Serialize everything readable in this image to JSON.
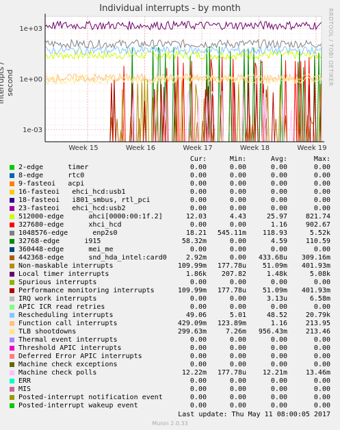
{
  "chart_data": {
    "type": "line",
    "title": "Individual interrupts - by month",
    "ylabel": "interrupts / second",
    "yscale": "log",
    "ylim": [
      0.0002,
      5000
    ],
    "yticks": [
      {
        "value": 1000,
        "label": "1e+03"
      },
      {
        "value": 1,
        "label": "1e+00"
      },
      {
        "value": 0.001,
        "label": "1e-03"
      }
    ],
    "xticks": [
      "Week 15",
      "Week 16",
      "Week 17",
      "Week 18",
      "Week 19"
    ],
    "side_text": "RRDTOOL / TOBI OETIKER",
    "columns": [
      "Cur:",
      "Min:",
      "Avg:",
      "Max:"
    ],
    "series": [
      {
        "name": "2-edge      timer",
        "color": "#00cc00",
        "cur": "0.00",
        "min": "0.00",
        "avg": "0.00",
        "max": "0.00"
      },
      {
        "name": "8-edge      rtc0",
        "color": "#0066b3",
        "cur": "0.00",
        "min": "0.00",
        "avg": "0.00",
        "max": "0.00"
      },
      {
        "name": "9-fasteoi   acpi",
        "color": "#ff8000",
        "cur": "0.00",
        "min": "0.00",
        "avg": "0.00",
        "max": "0.00"
      },
      {
        "name": "16-fasteoi   ehci_hcd:usb1",
        "color": "#ffcc00",
        "cur": "0.00",
        "min": "0.00",
        "avg": "0.00",
        "max": "0.00"
      },
      {
        "name": "18-fasteoi   i801_smbus, rtl_pci",
        "color": "#330099",
        "cur": "0.00",
        "min": "0.00",
        "avg": "0.00",
        "max": "0.00"
      },
      {
        "name": "23-fasteoi   ehci_hcd:usb2",
        "color": "#990099",
        "cur": "0.00",
        "min": "0.00",
        "avg": "0.00",
        "max": "0.00"
      },
      {
        "name": "512000-edge      ahci[0000:00:1f.2]",
        "color": "#ccff00",
        "cur": "12.03",
        "min": "4.43",
        "avg": "25.97",
        "max": "821.74"
      },
      {
        "name": "327680-edge      xhci_hcd",
        "color": "#ff0000",
        "cur": "0.00",
        "min": "0.00",
        "avg": "1.16",
        "max": "902.67"
      },
      {
        "name": "1048576-edge      enp2s0",
        "color": "#808080",
        "cur": "18.21",
        "min": "545.11m",
        "avg": "118.93",
        "max": "5.52k"
      },
      {
        "name": "32768-edge      i915",
        "color": "#008f00",
        "cur": "58.32m",
        "min": "0.00",
        "avg": "4.59",
        "max": "110.59"
      },
      {
        "name": "360448-edge      mei_me",
        "color": "#00487d",
        "cur": "0.00",
        "min": "0.00",
        "avg": "0.00",
        "max": "0.00"
      },
      {
        "name": "442368-edge      snd_hda_intel:card0",
        "color": "#b35a00",
        "cur": "2.92m",
        "min": "0.00",
        "avg": "433.68u",
        "max": "309.16m"
      },
      {
        "name": "Non-maskable interrupts",
        "color": "#b38f00",
        "cur": "109.99m",
        "min": "177.78u",
        "avg": "51.09m",
        "max": "401.93m"
      },
      {
        "name": "Local timer interrupts",
        "color": "#6b006b",
        "cur": "1.86k",
        "min": "207.82",
        "avg": "1.48k",
        "max": "5.08k"
      },
      {
        "name": "Spurious interrupts",
        "color": "#8fb300",
        "cur": "0.00",
        "min": "0.00",
        "avg": "0.00",
        "max": "0.00"
      },
      {
        "name": "Performance monitoring interrupts",
        "color": "#b30000",
        "cur": "109.99m",
        "min": "177.78u",
        "avg": "51.09m",
        "max": "401.93m"
      },
      {
        "name": "IRQ work interrupts",
        "color": "#bebebe",
        "cur": "0.00",
        "min": "0.00",
        "avg": "3.13u",
        "max": "6.58m"
      },
      {
        "name": "APIC ICR read retries",
        "color": "#80ff80",
        "cur": "0.00",
        "min": "0.00",
        "avg": "0.00",
        "max": "0.00"
      },
      {
        "name": "Rescheduling interrupts",
        "color": "#80c9ff",
        "cur": "49.06",
        "min": "5.01",
        "avg": "48.52",
        "max": "20.79k"
      },
      {
        "name": "Function call interrupts",
        "color": "#ffc080",
        "cur": "429.09m",
        "min": "123.89m",
        "avg": "1.16",
        "max": "213.95"
      },
      {
        "name": "TLB shootdowns",
        "color": "#ffe680",
        "cur": "299.63m",
        "min": "7.26m",
        "avg": "956.43m",
        "max": "213.46"
      },
      {
        "name": "Thermal event interrupts",
        "color": "#aa80ff",
        "cur": "0.00",
        "min": "0.00",
        "avg": "0.00",
        "max": "0.00"
      },
      {
        "name": "Threshold APIC interrupts",
        "color": "#ee00cc",
        "cur": "0.00",
        "min": "0.00",
        "avg": "0.00",
        "max": "0.00"
      },
      {
        "name": "Deferred Error APIC interrupts",
        "color": "#ff8080",
        "cur": "0.00",
        "min": "0.00",
        "avg": "0.00",
        "max": "0.00"
      },
      {
        "name": "Machine check exceptions",
        "color": "#666600",
        "cur": "0.00",
        "min": "0.00",
        "avg": "0.00",
        "max": "0.00"
      },
      {
        "name": "Machine check polls",
        "color": "#ffbfff",
        "cur": "12.22m",
        "min": "177.78u",
        "avg": "12.21m",
        "max": "13.46m"
      },
      {
        "name": "ERR",
        "color": "#00ffcc",
        "cur": "0.00",
        "min": "0.00",
        "avg": "0.00",
        "max": "0.00"
      },
      {
        "name": "MIS",
        "color": "#cc6699",
        "cur": "0.00",
        "min": "0.00",
        "avg": "0.00",
        "max": "0.00"
      },
      {
        "name": "Posted-interrupt notification event",
        "color": "#999900",
        "cur": "0.00",
        "min": "0.00",
        "avg": "0.00",
        "max": "0.00"
      },
      {
        "name": "Posted-interrupt wakeup event",
        "color": "#00cc00",
        "cur": "0.00",
        "min": "0.00",
        "avg": "0.00",
        "max": "0.00"
      }
    ],
    "grid": true,
    "legend": "bottom",
    "last_update": "Last update:  Thu May 11 08:00:05 2017",
    "footer": "Munin 2.0.33"
  }
}
